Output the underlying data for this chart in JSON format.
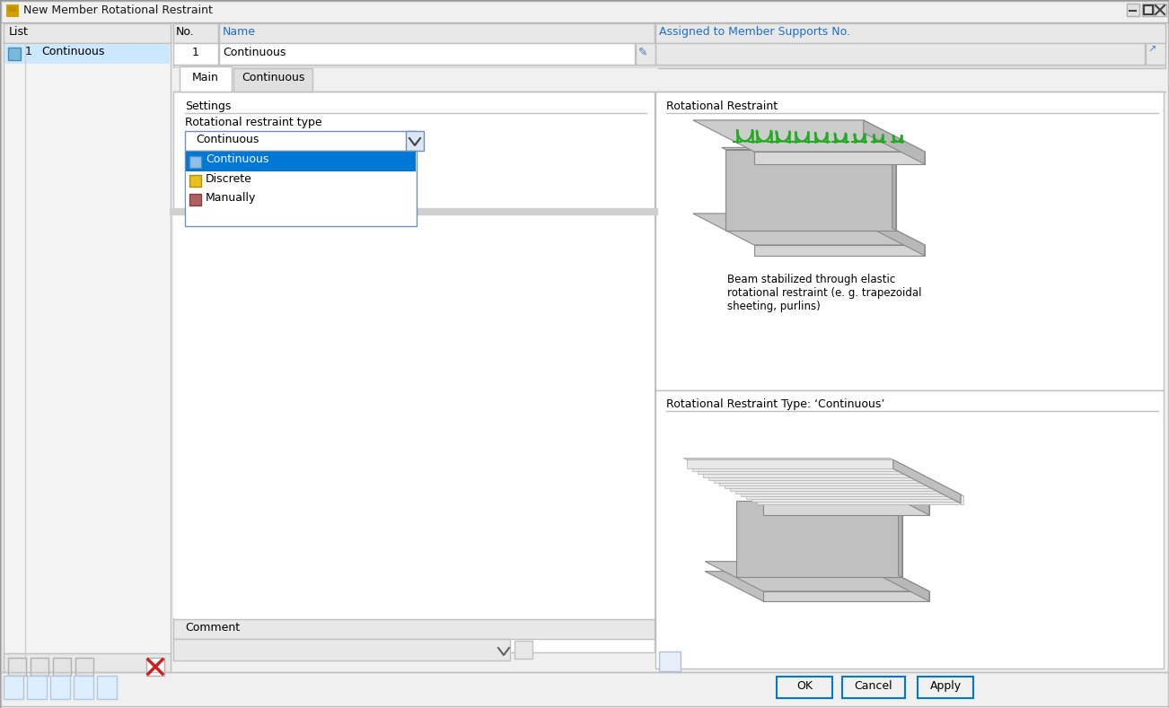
{
  "title": "New Member Rotational Restraint",
  "bg_color": "#f0f0f0",
  "white": "#ffffff",
  "blue_highlight": "#cce8ff",
  "blue_selected": "#0078d7",
  "list_header": "List",
  "list_item_num": "1",
  "list_item_name": "Continuous",
  "no_label": "No.",
  "name_label": "Name",
  "assigned_label": "Assigned to Member Supports No.",
  "name_value": "Continuous",
  "tab1": "Main",
  "tab2": "Continuous",
  "settings_label": "Settings",
  "rot_type_label": "Rotational restraint type",
  "dropdown_value": "Continuous",
  "dropdown_items": [
    "Continuous",
    "Discrete",
    "Manually"
  ],
  "comment_label": "Comment",
  "rot_restraint_label": "Rotational Restraint",
  "rot_type_label2": "Rotational Restraint Type: ‘Continuous’",
  "beam_desc": "Beam stabilized through elastic\nrotational restraint (e. g. trapezoidal\nsheeting, purlins)",
  "ok_btn": "OK",
  "cancel_btn": "Cancel",
  "apply_btn": "Apply",
  "green_spring": "#22aa22",
  "c_top": "#c8c8c8",
  "c_side": "#b0b0b0",
  "c_front": "#d8d8d8",
  "c_edge": "#888888"
}
